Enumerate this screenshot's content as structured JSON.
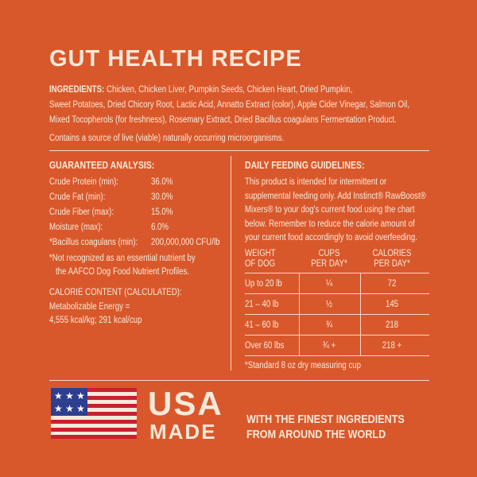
{
  "title": "GUT HEALTH RECIPE",
  "ingredients": {
    "label": "INGREDIENTS:",
    "lines": [
      "Chicken, Chicken Liver, Pumpkin Seeds, Chicken Heart, Dried Pumpkin,",
      "Sweet Potatoes, Dried Chicory Root, Lactic Acid, Annatto Extract (color), Apple Cider Vinegar, Salmon Oil,",
      "Mixed Tocopherols (for freshness), Rosemary Extract, Dried Bacillus coagulans Fermentation Product."
    ]
  },
  "note": "Contains a source of live (viable) naturally occurring microorganisms.",
  "analysis": {
    "heading": "GUARANTEED ANALYSIS:",
    "rows": [
      [
        "Crude Protein (min):",
        "36.0%"
      ],
      [
        "Crude Fat (min):",
        "30.0%"
      ],
      [
        "Crude Fiber (max):",
        "15.0%"
      ],
      [
        "Moisture (max):",
        "6.0%"
      ],
      [
        "*Bacillus coagulans (min):",
        "200,000,000 CFU/lb"
      ]
    ],
    "footnote": [
      "*Not recognized as an essential nutrient by",
      "the AAFCO Dog Food Nutrient Profiles."
    ],
    "calorie_heading": "CALORIE CONTENT (CALCULATED):",
    "calorie_lines": [
      "Metabolizable Energy =",
      "4,555 kcal/kg; 291 kcal/cup"
    ]
  },
  "feeding": {
    "heading": "DAILY FEEDING GUIDELINES:",
    "lines": [
      "This product is intended for intermittent or",
      "supplemental feeding only. Add Instinct® RawBoost®",
      "Mixers® to your dog's current food using the chart",
      "below. Remember to reduce the calorie amount of",
      "your current food accordingly to avoid overfeeding."
    ],
    "columns": [
      [
        "WEIGHT",
        "OF DOG"
      ],
      [
        "CUPS",
        "PER DAY*"
      ],
      [
        "CALORIES",
        "PER DAY*"
      ]
    ],
    "rows": [
      [
        "Up to 20 lb",
        "¼",
        "72"
      ],
      [
        "21 – 40 lb",
        "½",
        "145"
      ],
      [
        "41 – 60 lb",
        "¾",
        "218"
      ],
      [
        "Over 60 lbs",
        "¾ +",
        "218 +"
      ]
    ],
    "footnote": "*Standard 8 oz dry measuring cup"
  },
  "footer": {
    "usa": "USA",
    "made": "MADE",
    "tagline": [
      "WITH THE FINEST INGREDIENTS",
      "FROM AROUND THE WORLD"
    ]
  }
}
